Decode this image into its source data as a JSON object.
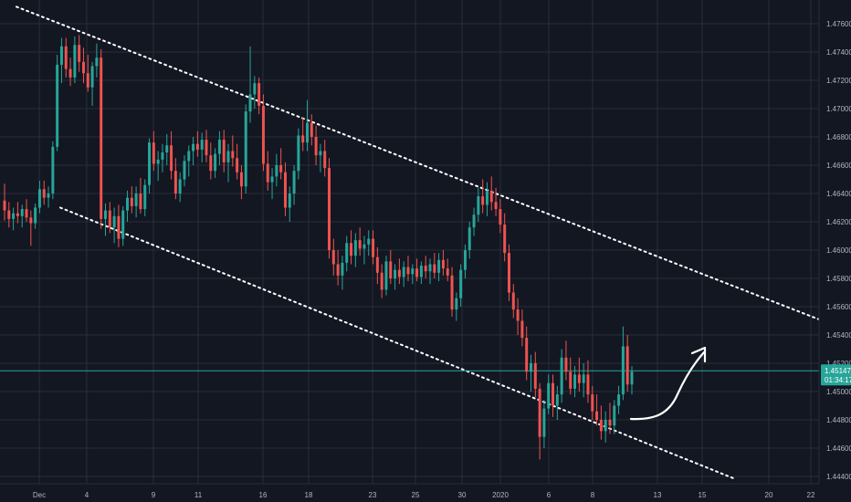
{
  "chart_data": {
    "type": "candlestick",
    "colors": {
      "background": "#131722",
      "grid": "#2a2e39",
      "bullish": "#26a69a",
      "bearish": "#ef5350",
      "channel": "#ffffff",
      "current_price_line": "#26a69a",
      "axis_text": "#b2b5be",
      "annotation_arrow": "#ffffff"
    },
    "x_ticks": [
      "Dec",
      "4",
      "9",
      "11",
      "16",
      "18",
      "23",
      "25",
      "30",
      "2020",
      "6",
      "8",
      "13",
      "15",
      "20",
      "22"
    ],
    "y_ticks": [
      "1.47600",
      "1.47400",
      "1.47200",
      "1.47000",
      "1.46800",
      "1.46600",
      "1.46400",
      "1.46200",
      "1.46000",
      "1.45800",
      "1.45600",
      "1.45400",
      "1.45200",
      "1.45000",
      "1.44800",
      "1.44600",
      "1.44400"
    ],
    "ylim": [
      1.4435,
      1.4775
    ],
    "grid": true,
    "current_price": {
      "value": 1.45147,
      "label": "1.45147",
      "countdown": "01:34:17"
    },
    "channel": {
      "upper": {
        "from": [
          "Dec",
          1.4772
        ],
        "to": [
          "22",
          1.4551
        ]
      },
      "lower": {
        "from": [
          "Dec",
          1.463
        ],
        "to": [
          "22",
          1.4438
        ]
      }
    },
    "annotation": "upward arrow",
    "candles": [
      [
        1.4635,
        1.4647,
        1.4621,
        1.4628
      ],
      [
        1.4628,
        1.4634,
        1.4616,
        1.4622
      ],
      [
        1.4622,
        1.463,
        1.4614,
        1.4626
      ],
      [
        1.4626,
        1.4634,
        1.4619,
        1.4624
      ],
      [
        1.4624,
        1.4632,
        1.4616,
        1.4629
      ],
      [
        1.4629,
        1.4636,
        1.462,
        1.4623
      ],
      [
        1.4623,
        1.4628,
        1.4603,
        1.4619
      ],
      [
        1.4619,
        1.4633,
        1.4615,
        1.463
      ],
      [
        1.463,
        1.4649,
        1.4626,
        1.4643
      ],
      [
        1.4643,
        1.4649,
        1.4632,
        1.4637
      ],
      [
        1.4637,
        1.4645,
        1.463,
        1.464
      ],
      [
        1.464,
        1.4677,
        1.4636,
        1.4673
      ],
      [
        1.4673,
        1.4738,
        1.467,
        1.4731
      ],
      [
        1.4731,
        1.475,
        1.4718,
        1.4744
      ],
      [
        1.4744,
        1.475,
        1.4722,
        1.4728
      ],
      [
        1.4728,
        1.4736,
        1.4716,
        1.4722
      ],
      [
        1.4722,
        1.4751,
        1.4718,
        1.4745
      ],
      [
        1.4745,
        1.4752,
        1.4726,
        1.4733
      ],
      [
        1.4733,
        1.4743,
        1.4718,
        1.4725
      ],
      [
        1.4725,
        1.4738,
        1.4712,
        1.4715
      ],
      [
        1.4715,
        1.4733,
        1.4702,
        1.473
      ],
      [
        1.473,
        1.4746,
        1.4722,
        1.4736
      ],
      [
        1.4736,
        1.4742,
        1.4615,
        1.4622
      ],
      [
        1.4622,
        1.4633,
        1.461,
        1.4628
      ],
      [
        1.4628,
        1.4634,
        1.4612,
        1.4616
      ],
      [
        1.4616,
        1.463,
        1.4605,
        1.4624
      ],
      [
        1.4624,
        1.4632,
        1.4602,
        1.4608
      ],
      [
        1.4608,
        1.4631,
        1.4603,
        1.4628
      ],
      [
        1.4628,
        1.4642,
        1.462,
        1.4637
      ],
      [
        1.4637,
        1.4645,
        1.4626,
        1.4631
      ],
      [
        1.4631,
        1.4645,
        1.4623,
        1.464
      ],
      [
        1.464,
        1.4651,
        1.4626,
        1.4629
      ],
      [
        1.4629,
        1.465,
        1.4624,
        1.4646
      ],
      [
        1.4646,
        1.4679,
        1.464,
        1.4676
      ],
      [
        1.4676,
        1.4684,
        1.4656,
        1.4661
      ],
      [
        1.4661,
        1.467,
        1.4649,
        1.4664
      ],
      [
        1.4664,
        1.4675,
        1.4655,
        1.4669
      ],
      [
        1.4669,
        1.4682,
        1.466,
        1.4674
      ],
      [
        1.4674,
        1.4684,
        1.465,
        1.4656
      ],
      [
        1.4656,
        1.4665,
        1.4636,
        1.464
      ],
      [
        1.464,
        1.4655,
        1.4634,
        1.465
      ],
      [
        1.465,
        1.4667,
        1.4645,
        1.4663
      ],
      [
        1.4663,
        1.4674,
        1.4652,
        1.467
      ],
      [
        1.467,
        1.468,
        1.466,
        1.4675
      ],
      [
        1.4675,
        1.4684,
        1.4666,
        1.4671
      ],
      [
        1.4671,
        1.4683,
        1.4662,
        1.4678
      ],
      [
        1.4678,
        1.4685,
        1.4662,
        1.4667
      ],
      [
        1.4667,
        1.4676,
        1.465,
        1.4656
      ],
      [
        1.4656,
        1.4672,
        1.4651,
        1.4668
      ],
      [
        1.4668,
        1.4684,
        1.466,
        1.4678
      ],
      [
        1.4678,
        1.4685,
        1.4655,
        1.4662
      ],
      [
        1.4662,
        1.4675,
        1.4648,
        1.467
      ],
      [
        1.467,
        1.4681,
        1.4659,
        1.4665
      ],
      [
        1.4665,
        1.4675,
        1.465,
        1.4655
      ],
      [
        1.4655,
        1.466,
        1.4636,
        1.4645
      ],
      [
        1.4645,
        1.4703,
        1.464,
        1.4698
      ],
      [
        1.4698,
        1.4744,
        1.469,
        1.471
      ],
      [
        1.471,
        1.4723,
        1.47,
        1.4718
      ],
      [
        1.4718,
        1.4722,
        1.4696,
        1.4702
      ],
      [
        1.4702,
        1.471,
        1.4656,
        1.4661
      ],
      [
        1.4661,
        1.467,
        1.4642,
        1.4648
      ],
      [
        1.4648,
        1.4658,
        1.4636,
        1.4652
      ],
      [
        1.4652,
        1.4668,
        1.4645,
        1.466
      ],
      [
        1.466,
        1.4672,
        1.465,
        1.4655
      ],
      [
        1.4655,
        1.4662,
        1.4624,
        1.463
      ],
      [
        1.463,
        1.4645,
        1.462,
        1.464
      ],
      [
        1.464,
        1.466,
        1.4632,
        1.4656
      ],
      [
        1.4656,
        1.4686,
        1.465,
        1.4681
      ],
      [
        1.4681,
        1.4694,
        1.467,
        1.4676
      ],
      [
        1.4676,
        1.4706,
        1.467,
        1.469
      ],
      [
        1.469,
        1.4696,
        1.4674,
        1.468
      ],
      [
        1.468,
        1.4688,
        1.466,
        1.4667
      ],
      [
        1.4667,
        1.4675,
        1.4655,
        1.467
      ],
      [
        1.467,
        1.4678,
        1.4652,
        1.4658
      ],
      [
        1.4658,
        1.4665,
        1.4594,
        1.46
      ],
      [
        1.46,
        1.4608,
        1.4582,
        1.459
      ],
      [
        1.459,
        1.46,
        1.4575,
        1.4582
      ],
      [
        1.4582,
        1.4596,
        1.4572,
        1.4591
      ],
      [
        1.4591,
        1.461,
        1.4585,
        1.4605
      ],
      [
        1.4605,
        1.4614,
        1.459,
        1.4596
      ],
      [
        1.4596,
        1.4612,
        1.4588,
        1.4607
      ],
      [
        1.4607,
        1.4616,
        1.4596,
        1.4601
      ],
      [
        1.4601,
        1.461,
        1.459,
        1.4604
      ],
      [
        1.4604,
        1.4614,
        1.4596,
        1.4608
      ],
      [
        1.4608,
        1.4614,
        1.459,
        1.4595
      ],
      [
        1.4595,
        1.4602,
        1.4576,
        1.4584
      ],
      [
        1.4584,
        1.459,
        1.4566,
        1.4572
      ],
      [
        1.4572,
        1.4596,
        1.4568,
        1.4592
      ],
      [
        1.4592,
        1.46,
        1.4576,
        1.458
      ],
      [
        1.458,
        1.459,
        1.4572,
        1.4586
      ],
      [
        1.4586,
        1.4594,
        1.4576,
        1.4581
      ],
      [
        1.4581,
        1.4592,
        1.4574,
        1.4588
      ],
      [
        1.4588,
        1.4596,
        1.4578,
        1.4583
      ],
      [
        1.4583,
        1.459,
        1.4576,
        1.4587
      ],
      [
        1.4587,
        1.4594,
        1.4578,
        1.4581
      ],
      [
        1.4581,
        1.4592,
        1.4576,
        1.4589
      ],
      [
        1.4589,
        1.4596,
        1.458,
        1.4585
      ],
      [
        1.4585,
        1.4594,
        1.4576,
        1.459
      ],
      [
        1.459,
        1.4598,
        1.458,
        1.4584
      ],
      [
        1.4584,
        1.4598,
        1.4578,
        1.4593
      ],
      [
        1.4593,
        1.46,
        1.4582,
        1.4587
      ],
      [
        1.4587,
        1.4594,
        1.4578,
        1.4582
      ],
      [
        1.4582,
        1.4588,
        1.4553,
        1.4558
      ],
      [
        1.4558,
        1.457,
        1.455,
        1.4566
      ],
      [
        1.4566,
        1.459,
        1.456,
        1.4586
      ],
      [
        1.4586,
        1.4604,
        1.458,
        1.46
      ],
      [
        1.46,
        1.462,
        1.4594,
        1.4616
      ],
      [
        1.4616,
        1.463,
        1.461,
        1.4625
      ],
      [
        1.4625,
        1.4644,
        1.462,
        1.4638
      ],
      [
        1.4638,
        1.465,
        1.4626,
        1.4632
      ],
      [
        1.4632,
        1.4648,
        1.4624,
        1.4642
      ],
      [
        1.4642,
        1.4652,
        1.4628,
        1.4634
      ],
      [
        1.4634,
        1.4644,
        1.4624,
        1.4629
      ],
      [
        1.4629,
        1.4636,
        1.4612,
        1.4618
      ],
      [
        1.4618,
        1.4626,
        1.4592,
        1.4598
      ],
      [
        1.4598,
        1.4604,
        1.4564,
        1.457
      ],
      [
        1.457,
        1.4576,
        1.4552,
        1.4558
      ],
      [
        1.4558,
        1.4566,
        1.454,
        1.455
      ],
      [
        1.455,
        1.4558,
        1.4532,
        1.4538
      ],
      [
        1.4538,
        1.4546,
        1.4508,
        1.4514
      ],
      [
        1.4514,
        1.4526,
        1.45,
        1.452
      ],
      [
        1.452,
        1.4528,
        1.4496,
        1.4502
      ],
      [
        1.4502,
        1.4506,
        1.4452,
        1.4468
      ],
      [
        1.4468,
        1.4494,
        1.446,
        1.4488
      ],
      [
        1.4488,
        1.4512,
        1.4484,
        1.4506
      ],
      [
        1.4506,
        1.4512,
        1.4482,
        1.449
      ],
      [
        1.449,
        1.4504,
        1.448,
        1.4498
      ],
      [
        1.4498,
        1.453,
        1.4492,
        1.4524
      ],
      [
        1.4524,
        1.4536,
        1.4508,
        1.4514
      ],
      [
        1.4514,
        1.4524,
        1.4498,
        1.4502
      ],
      [
        1.4502,
        1.4518,
        1.4496,
        1.4512
      ],
      [
        1.4512,
        1.4524,
        1.45,
        1.4506
      ],
      [
        1.4506,
        1.452,
        1.4496,
        1.4512
      ],
      [
        1.4512,
        1.4522,
        1.4492,
        1.4498
      ],
      [
        1.4498,
        1.4504,
        1.448,
        1.4486
      ],
      [
        1.4486,
        1.4498,
        1.4476,
        1.448
      ],
      [
        1.448,
        1.449,
        1.4466,
        1.4472
      ],
      [
        1.4472,
        1.4486,
        1.4464,
        1.448
      ],
      [
        1.448,
        1.4492,
        1.447,
        1.4476
      ],
      [
        1.4476,
        1.4494,
        1.447,
        1.449
      ],
      [
        1.449,
        1.4504,
        1.4484,
        1.4498
      ],
      [
        1.4498,
        1.4546,
        1.4494,
        1.4532
      ],
      [
        1.4532,
        1.454,
        1.45,
        1.4505
      ],
      [
        1.4505,
        1.4518,
        1.4498,
        1.4514
      ]
    ]
  }
}
